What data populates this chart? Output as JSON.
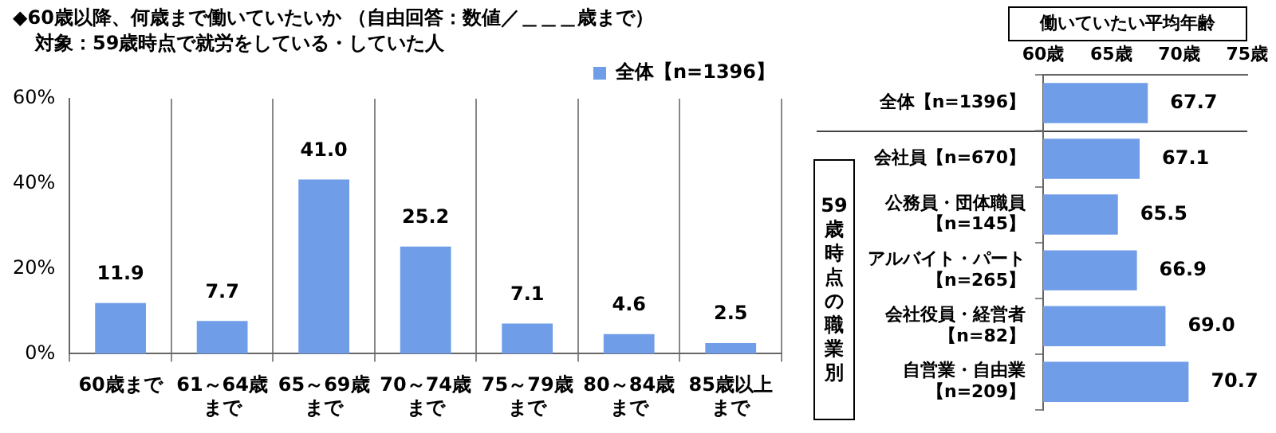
{
  "chart_data": [
    {
      "type": "bar",
      "title": "◆60歳以降、何歳まで働いていたいか （自由回答：数値／＿＿＿歳まで）",
      "subtitle": "対象：59歳時点で就労をしている・していた人",
      "categories": [
        "60歳まで",
        "61～64歳まで",
        "65～69歳まで",
        "70～74歳まで",
        "75～79歳まで",
        "80～84歳まで",
        "85歳以上まで"
      ],
      "series": [
        {
          "name": "全体【n=1396】",
          "color": "#6f9de8",
          "values": [
            11.9,
            7.7,
            41.0,
            25.2,
            7.1,
            4.6,
            2.5
          ],
          "value_labels": [
            "11.9",
            "7.7",
            "41.0",
            "25.2",
            "7.1",
            "4.6",
            "2.5"
          ]
        }
      ],
      "ylim": [
        0,
        60
      ],
      "yticks": [
        {
          "value": 0,
          "label": "0%"
        },
        {
          "value": 20,
          "label": "20%"
        },
        {
          "value": 40,
          "label": "40%"
        },
        {
          "value": 60,
          "label": "60%"
        }
      ],
      "grid": "x",
      "legend": "top right"
    },
    {
      "type": "bar",
      "orientation": "horizontal",
      "title": "働いていたい平均年齢",
      "categories": [
        "全体【n=1396】",
        "会社員【n=670】",
        "公務員・団体職員【n=145】",
        "アルバイト・パート【n=265】",
        "会社役員・経営者【n=82】",
        "自営業・自由業【n=209】"
      ],
      "series": [
        {
          "color": "#6f9de8",
          "values": [
            67.7,
            67.1,
            65.5,
            66.9,
            69.0,
            70.7
          ],
          "value_labels": [
            "67.7",
            "67.1",
            "65.5",
            "66.9",
            "69.0",
            "70.7"
          ]
        }
      ],
      "xlim": [
        60,
        75
      ],
      "xticks": [
        {
          "value": 60,
          "label": "60歳"
        },
        {
          "value": 65,
          "label": "65歳"
        },
        {
          "value": 70,
          "label": "70歳"
        },
        {
          "value": 75,
          "label": "75歳"
        }
      ],
      "annotations": [
        "59歳時点の職業別"
      ],
      "grid": false,
      "legend": false
    }
  ]
}
